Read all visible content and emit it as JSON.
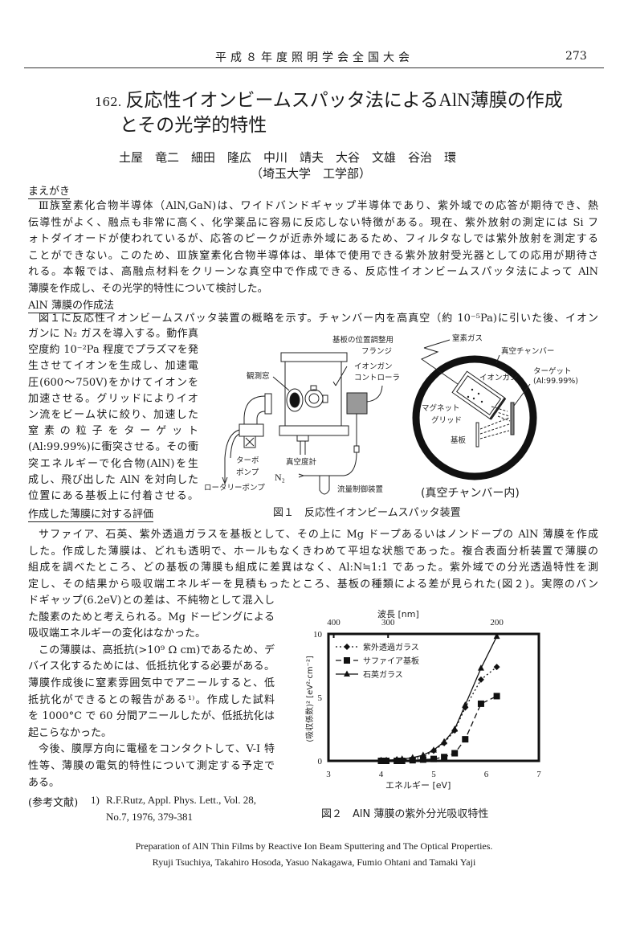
{
  "header": {
    "conference": "平成８年度照明学会全国大会",
    "page_number": "273"
  },
  "title": {
    "number": "162.",
    "line1": "反応性イオンビームスパッタ法によるAlN薄膜の作成",
    "line2": "とその光学的特性"
  },
  "authors": "土屋　竜二　細田　隆広　中川　靖夫　大谷　文雄　谷治　環",
  "affiliation": "（埼玉大学　工学部）",
  "intro": {
    "heading": "まえがき",
    "lines": [
      "Ⅲ族窒素化合物半導体（AlN,GaN)は、ワイドバンドギャップ半導体であり、紫外域での応答が期待でき、熱",
      "伝導性がよく、融点も非常に高く、化学薬品に容易に反応しない特徴がある。現在、紫外放射の測定には Si フ",
      "ォトダイオードが使われているが、応答のピークが近赤外域にあるため、フィルタなしでは紫外放射を測定する",
      "ことができない。このため、Ⅲ族窒素化合物半導体は、単体で使用できる紫外放射受光器としての応用が期待さ",
      "れる。本報では、高融点材料をクリーンな真空中で作成できる、反応性イオンビームスパッタ法によって AlN",
      "薄膜を作成し、その光学的特性について検討した。"
    ]
  },
  "method": {
    "heading": "AlN 薄膜の作成法",
    "lines_full": [
      "図１に反応性イオンビームスパッタ装置の概略を示す。チャンバー内を高真空（約 10⁻⁵Pa)に引いた後、イオン"
    ],
    "lines_column": [
      "ガンに N₂ ガスを導入する。動作真",
      "空度約 10⁻²Pa 程度でプラズマを発",
      "生させてイオンを生成し、加速電",
      "圧(600～750V)をかけてイオンを",
      "加速させる。グリッドによりイオ",
      "ン流をビーム状に絞り、加速した",
      "窒素の粒子をターゲット",
      "(Al:99.99%)に衝突させる。その衝",
      "突エネルギーで化合物(AlN)を生",
      "成し、飛び出した AlN を対向した",
      "位置にある基板上に付着させる。"
    ]
  },
  "evaluation": {
    "heading": "作成した薄膜に対する評価",
    "lines_full": [
      "サファイア、石英、紫外透過ガラスを基板として、その上に Mg ドープあるいはノンドープの AlN 薄膜を作成",
      "した。作成した薄膜は、どれも透明で、ホールもなくきわめて平坦な状態であった。複合表面分析装置で薄膜の",
      "組成を調べたところ、どの基板の薄膜も組成に差異はなく、Al:N≒1:1 であった。紫外域での分光透過特性を測",
      "定し、その結果から吸収端エネルギーを見積もったところ、基板の種類による差が見られた(図２)。実際のバン"
    ],
    "lines_column": [
      "ドギャップ(6.2eV)との差は、不純物として混入し",
      "た酸素のためと考えられる。Mg ドーピングによる",
      "吸収端エネルギーの変化はなかった。",
      "この薄膜は、高抵抗(>10⁹ Ω cm)であるため、デ",
      "バイス化するためには、低抵抗化する必要がある。",
      "薄膜作成後に窒素雰囲気中でアニールすると、低",
      "抵抗化ができるとの報告がある¹⁾。作成した試料",
      "を 1000°C で 60 分間アニールしたが、低抵抗化は",
      "起こらなかった。",
      "今後、膜厚方向に電極をコンタクトして、V-I 特",
      "性等、薄膜の電気的特性について測定する予定で",
      "ある。"
    ]
  },
  "references": {
    "label": "(参考文献)",
    "items": [
      {
        "number": "1)",
        "line1": "R.F.Rutz, Appl. Phys. Lett., Vol. 28,",
        "line2": "No.7, 1976, 379-381"
      }
    ]
  },
  "figure1": {
    "caption": "図１　反応性イオンビームスパッタ装置",
    "labels": {
      "flange_1": "基板の位置調整用",
      "flange_2": "フランジ",
      "nitrogen_gas": "窒素ガス",
      "vacuum_chamber": "真空チャンバー",
      "window": "観測窓",
      "controller_1": "イオンガン",
      "controller_2": "コントローラ",
      "target": "ターゲット",
      "target_spec": "(Al:99.99%)",
      "ion_gun": "イオンガン",
      "magnet": "マグネット",
      "grid": "グリッド",
      "substrate": "基板",
      "turbo_1": "ターボ",
      "turbo_2": "ポンプ",
      "gauge": "真空度計",
      "n2": "N₂",
      "rotary_pump": "ロータリーポンプ",
      "flow_controller": "流量制御装置",
      "chamber_inside": "(真空チャンバー内)"
    }
  },
  "chart_data": {
    "type": "line",
    "title": "",
    "caption": "図２　AlN 薄膜の紫外分光吸収特性",
    "xlabel": "エネルギー [eV]",
    "ylabel": "(吸収係数)² [eV²·cm⁻²]",
    "x2label": "波長 [nm]",
    "xlim": [
      3,
      7
    ],
    "ylim": [
      0,
      10
    ],
    "xticks": [
      3,
      4,
      5,
      6,
      7
    ],
    "yticks": [
      0,
      5,
      10
    ],
    "x2ticks": [
      400,
      300,
      200
    ],
    "grid": false,
    "legend": "top-left",
    "series": [
      {
        "name": "紫外透過ガラス",
        "marker": "diamond",
        "line": "dotted",
        "x": [
          4.0,
          4.1,
          4.3,
          4.4,
          4.6,
          4.8,
          5.0,
          5.2,
          5.4,
          5.6,
          5.9,
          6.2
        ],
        "y": [
          0.05,
          0.05,
          0.1,
          0.1,
          0.15,
          0.3,
          0.8,
          1.4,
          2.4,
          4.2,
          6.4,
          7.4
        ]
      },
      {
        "name": "サファイア基板",
        "marker": "square",
        "line": "dashed",
        "x": [
          4.0,
          4.1,
          4.3,
          4.4,
          4.6,
          4.8,
          5.0,
          5.2,
          5.4,
          5.6,
          5.9,
          6.2
        ],
        "y": [
          0.0,
          0.0,
          0.0,
          0.0,
          0.05,
          0.1,
          0.15,
          0.3,
          0.6,
          1.7,
          4.5,
          5.1
        ]
      },
      {
        "name": "石英ガラス",
        "marker": "triangle",
        "line": "solid",
        "x": [
          4.0,
          4.1,
          4.3,
          4.4,
          4.6,
          4.8,
          5.0,
          5.2,
          5.4,
          5.6,
          5.9,
          6.2
        ],
        "y": [
          0.05,
          0.05,
          0.1,
          0.15,
          0.25,
          0.45,
          0.85,
          1.5,
          2.5,
          4.4,
          7.3,
          9.8
        ]
      }
    ]
  },
  "english": {
    "title": "Preparation of AlN Thin Films by Reactive Ion Beam Sputtering and The Optical Properties.",
    "authors": "Ryuji Tsuchiya, Takahiro Hosoda, Yasuo Nakagawa, Fumio Ohtani and Tamaki Yaji"
  }
}
